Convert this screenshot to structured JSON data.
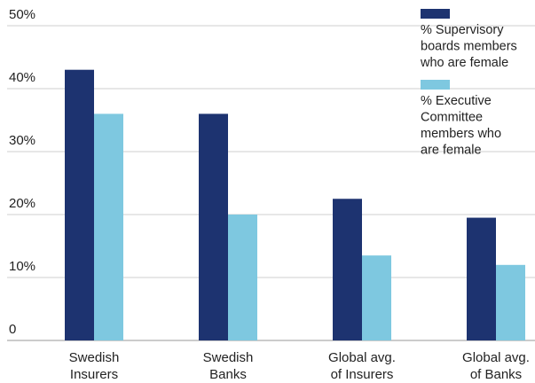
{
  "chart_data": {
    "type": "bar",
    "categories": [
      [
        "Swedish",
        "Insurers"
      ],
      [
        "Swedish",
        "Banks"
      ],
      [
        "Global avg.",
        "of Insurers"
      ],
      [
        "Global avg.",
        "of Banks"
      ]
    ],
    "series": [
      {
        "name": [
          "% Supervisory",
          "boards members",
          "who are female"
        ],
        "color": "#1d3370",
        "values": [
          43,
          36,
          22.5,
          19.5
        ]
      },
      {
        "name": [
          "% Executive",
          "Committee",
          "members who",
          "are female"
        ],
        "color": "#7ec8e0",
        "values": [
          36,
          20,
          13.5,
          12
        ]
      }
    ],
    "yticks": [
      "0",
      "10%",
      "20%",
      "30%",
      "40%",
      "50%"
    ],
    "ylim": [
      0,
      50
    ],
    "grid": true,
    "legend_position": "top-right"
  }
}
